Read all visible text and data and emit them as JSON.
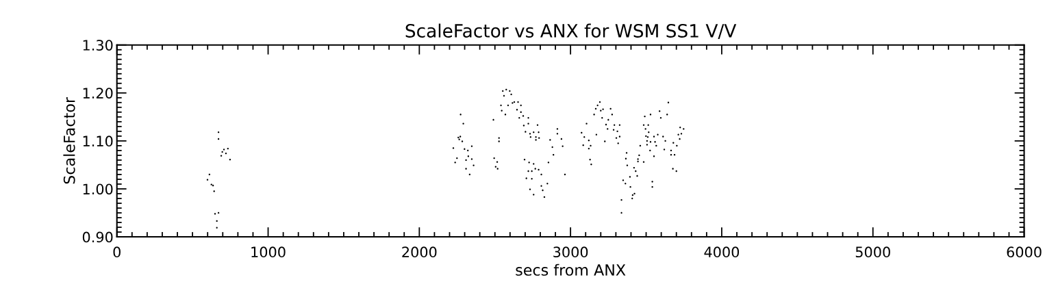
{
  "chart_data": {
    "type": "scatter",
    "title": "ScaleFactor vs ANX for WSM SS1 V/V",
    "xlabel": "secs from ANX",
    "ylabel": "ScaleFactor",
    "xlim": [
      0,
      6000
    ],
    "xticks": [
      0,
      1000,
      2000,
      3000,
      4000,
      5000,
      6000
    ],
    "ylim": [
      0.9,
      1.3
    ],
    "yticks": [
      {
        "value": 0.9,
        "label": "0.90"
      },
      {
        "value": 1.0,
        "label": "1.00"
      },
      {
        "value": 1.1,
        "label": "1.10"
      },
      {
        "value": 1.2,
        "label": "1.20"
      },
      {
        "value": 1.3,
        "label": "1.30"
      }
    ],
    "grid": false,
    "legend": false,
    "marker": "circle",
    "series": [
      {
        "color": "#000000",
        "x": [
          612,
          599,
          625,
          636,
          643,
          649,
          672,
          661,
          661,
          672,
          672,
          697,
          708,
          734,
          721,
          748,
          690,
          2273,
          2291,
          2258,
          2271,
          2264,
          2284,
          2225,
          2347,
          2299,
          2321,
          2249,
          2309,
          2347,
          2324,
          2237,
          2359,
          2309,
          2333,
          2490,
          2527,
          2527,
          2495,
          2515,
          2505,
          2518,
          2552,
          2575,
          2560,
          2598,
          2608,
          2540,
          2545,
          2569,
          2587,
          2616,
          2628,
          2653,
          2672,
          2646,
          2672,
          2661,
          2687,
          2721,
          2691,
          2721,
          2782,
          2702,
          2732,
          2756,
          2789,
          2736,
          2771,
          2792,
          2771,
          2696,
          2726,
          2756,
          2767,
          2744,
          2721,
          2789,
          2807,
          2708,
          2744,
          2847,
          2807,
          2732,
          2816,
          2756,
          2827,
          2854,
          2865,
          2913,
          2913,
          2880,
          2887,
          2940,
          2948,
          2963,
          3106,
          3073,
          3091,
          3121,
          3084,
          3121,
          3133,
          3129,
          3137,
          3156,
          3167,
          3179,
          3194,
          3200,
          3215,
          3209,
          3265,
          3275,
          3250,
          3171,
          3235,
          3245,
          3290,
          3325,
          3285,
          3310,
          3325,
          3303,
          3227,
          3315,
          3337,
          3337,
          3371,
          3366,
          3375,
          3348,
          3363,
          3393,
          3441,
          3396,
          3420,
          3431,
          3411,
          3423,
          3408,
          3454,
          3446,
          3446,
          3484,
          3461,
          3491,
          3529,
          3484,
          3514,
          3496,
          3517,
          3499,
          3511,
          3552,
          3577,
          3506,
          3529,
          3559,
          3506,
          3567,
          3526,
          3552,
          3541,
          3541,
          3589,
          3597,
          3639,
          3647,
          3612,
          3627,
          3620,
          3665,
          3665,
          3688,
          3680,
          3703,
          3722,
          3733,
          3713,
          3725,
          3748,
          3677,
          3700
        ],
        "values": [
          1.03,
          1.019,
          1.009,
          1.007,
          0.995,
          0.948,
          0.95,
          0.933,
          0.919,
          1.118,
          1.104,
          1.077,
          1.082,
          1.084,
          1.074,
          1.061,
          1.069,
          1.155,
          1.136,
          1.107,
          1.109,
          1.103,
          1.099,
          1.085,
          1.089,
          1.083,
          1.08,
          1.064,
          1.06,
          1.062,
          1.068,
          1.055,
          1.049,
          1.042,
          1.03,
          1.144,
          1.106,
          1.099,
          1.064,
          1.056,
          1.046,
          1.042,
          1.204,
          1.207,
          1.194,
          1.204,
          1.197,
          1.174,
          1.163,
          1.155,
          1.174,
          1.179,
          1.181,
          1.181,
          1.174,
          1.165,
          1.16,
          1.148,
          1.152,
          1.148,
          1.132,
          1.136,
          1.133,
          1.119,
          1.115,
          1.118,
          1.118,
          1.108,
          1.108,
          1.106,
          1.102,
          1.061,
          1.055,
          1.052,
          1.042,
          1.037,
          1.037,
          1.04,
          1.03,
          1.022,
          1.021,
          1.011,
          1.006,
          0.999,
          0.997,
          0.988,
          0.983,
          1.055,
          1.102,
          1.125,
          1.115,
          1.087,
          1.071,
          1.104,
          1.089,
          1.03,
          1.136,
          1.117,
          1.108,
          1.101,
          1.091,
          1.084,
          1.09,
          1.061,
          1.051,
          1.155,
          1.167,
          1.174,
          1.181,
          1.163,
          1.166,
          1.148,
          1.167,
          1.155,
          1.144,
          1.113,
          1.134,
          1.125,
          1.133,
          1.133,
          1.123,
          1.12,
          1.109,
          1.106,
          1.099,
          1.095,
          0.977,
          0.95,
          1.075,
          1.063,
          1.049,
          1.018,
          1.011,
          1.025,
          1.027,
          1.004,
          1.044,
          1.037,
          0.987,
          0.99,
          0.98,
          1.07,
          1.062,
          1.057,
          1.056,
          1.09,
          1.151,
          1.155,
          1.133,
          1.133,
          1.125,
          1.118,
          1.11,
          1.108,
          1.109,
          1.113,
          1.1,
          1.098,
          1.098,
          1.092,
          1.09,
          1.08,
          1.068,
          1.015,
          1.004,
          1.162,
          1.148,
          1.155,
          1.18,
          1.109,
          1.1,
          1.082,
          1.08,
          1.071,
          1.071,
          1.096,
          1.09,
          1.104,
          1.115,
          1.113,
          1.128,
          1.125,
          1.042,
          1.037
        ]
      }
    ]
  }
}
